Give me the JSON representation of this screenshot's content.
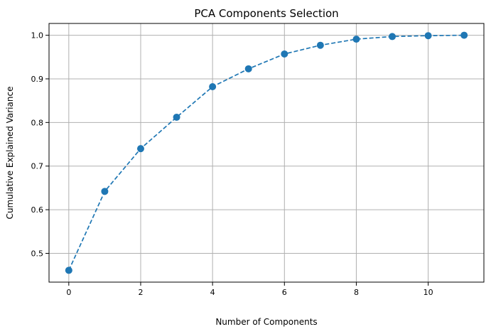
{
  "chart_data": {
    "type": "line",
    "title": "PCA Components Selection",
    "xlabel": "Number of Components",
    "ylabel": "Cumulative Explained Variance",
    "x": [
      0,
      1,
      2,
      3,
      4,
      5,
      6,
      7,
      8,
      9,
      10,
      11
    ],
    "series": [
      {
        "values": [
          0.461,
          0.642,
          0.74,
          0.812,
          0.882,
          0.923,
          0.957,
          0.977,
          0.991,
          0.997,
          0.999,
          1.0
        ],
        "color": "#1f77b4",
        "line_style": "dashed",
        "marker": "circle"
      }
    ],
    "xlim": [
      -0.55,
      11.55
    ],
    "ylim": [
      0.434,
      1.027
    ],
    "xticks": [
      0,
      2,
      4,
      6,
      8,
      10
    ],
    "yticks": [
      0.5,
      0.6,
      0.7,
      0.8,
      0.9,
      1.0
    ],
    "xtick_labels": [
      "0",
      "2",
      "4",
      "6",
      "8",
      "10"
    ],
    "ytick_labels": [
      "0.5",
      "0.6",
      "0.7",
      "0.8",
      "0.9",
      "1.0"
    ],
    "grid": true
  }
}
